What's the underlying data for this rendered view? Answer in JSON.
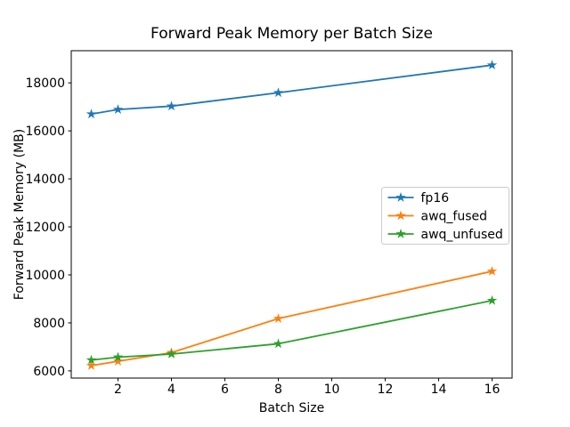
{
  "figure": {
    "background": "#ffffff",
    "text_color": "#000000",
    "spine_color": "#000000",
    "legend_border_color": "#cccccc"
  },
  "chart_data": {
    "type": "line",
    "title": "Forward Peak Memory per Batch Size",
    "xlabel": "Batch Size",
    "ylabel": "Forward Peak Memory (MB)",
    "x": [
      1,
      2,
      4,
      8,
      16
    ],
    "series": [
      {
        "name": "fp16",
        "color": "#1f77b4",
        "values": [
          16700,
          16890,
          17030,
          17590,
          18740
        ]
      },
      {
        "name": "awq_fused",
        "color": "#ff7f0e",
        "values": [
          6220,
          6400,
          6760,
          8180,
          10150
        ]
      },
      {
        "name": "awq_unfused",
        "color": "#2ca02c",
        "values": [
          6450,
          6570,
          6700,
          7130,
          8930
        ]
      }
    ],
    "x_ticks": [
      2,
      4,
      6,
      8,
      10,
      12,
      14,
      16
    ],
    "y_ticks": [
      6000,
      8000,
      10000,
      12000,
      14000,
      16000,
      18000
    ],
    "xlim": [
      0.25,
      16.75
    ],
    "ylim": [
      5700,
      19340
    ],
    "grid": false,
    "marker": "star",
    "legend_position": "center right"
  }
}
